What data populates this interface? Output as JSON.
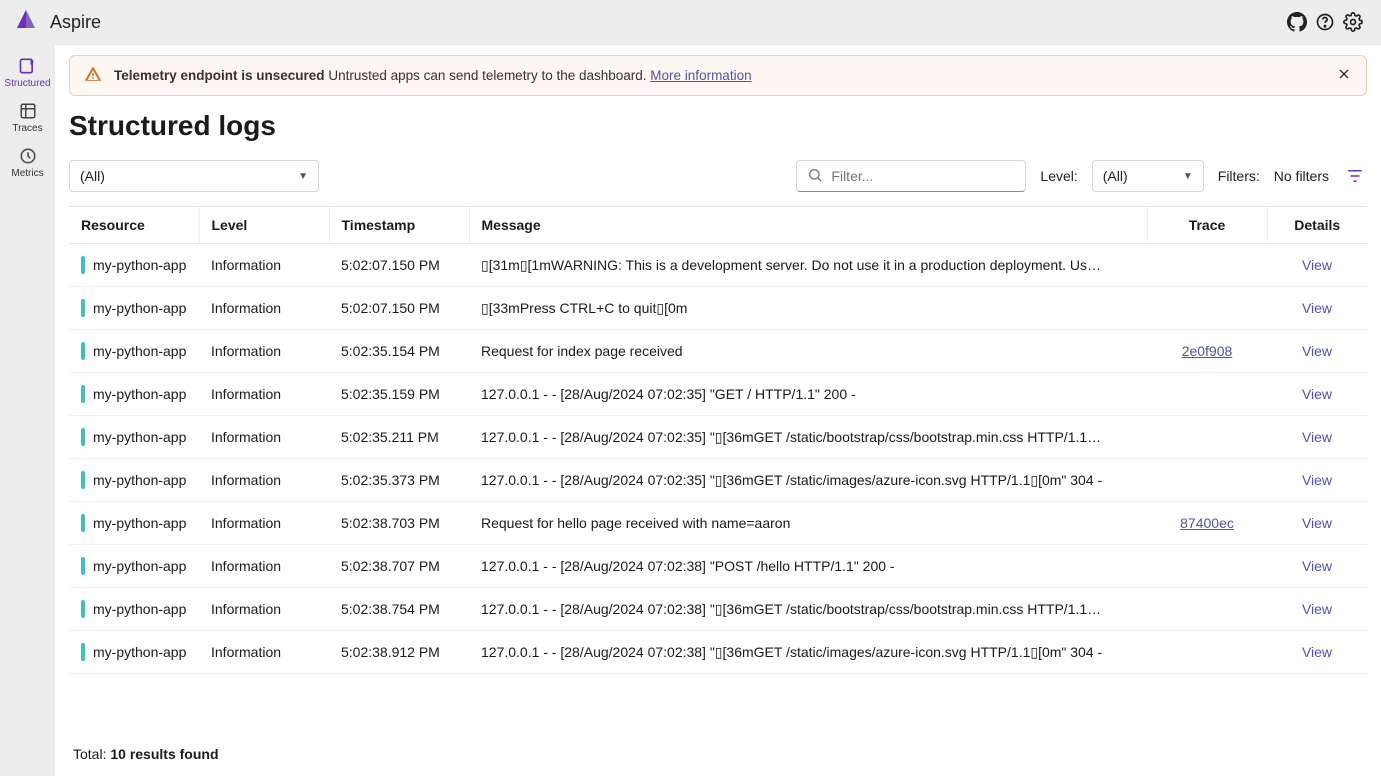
{
  "header": {
    "brand": "Aspire"
  },
  "sidebar": {
    "items": [
      {
        "label": "Structured",
        "icon": "structured-icon",
        "active": true
      },
      {
        "label": "Traces",
        "icon": "traces-icon",
        "active": false
      },
      {
        "label": "Metrics",
        "icon": "metrics-icon",
        "active": false
      }
    ]
  },
  "alert": {
    "title": "Telemetry endpoint is unsecured",
    "body": "Untrusted apps can send telemetry to the dashboard.",
    "link_label": "More information"
  },
  "page": {
    "title": "Structured logs"
  },
  "controls": {
    "resource_selected": "(All)",
    "search_placeholder": "Filter...",
    "level_label": "Level:",
    "level_selected": "(All)",
    "filters_label": "Filters:",
    "filters_value": "No filters"
  },
  "columns": {
    "resource": "Resource",
    "level": "Level",
    "timestamp": "Timestamp",
    "message": "Message",
    "trace": "Trace",
    "details": "Details"
  },
  "rows": [
    {
      "resource": "my-python-app",
      "level": "Information",
      "timestamp": "5:02:07.150 PM",
      "message": "▯[31m▯[1mWARNING: This is a development server. Do not use it in a production deployment. Us…",
      "trace": "",
      "details": "View"
    },
    {
      "resource": "my-python-app",
      "level": "Information",
      "timestamp": "5:02:07.150 PM",
      "message": "▯[33mPress CTRL+C to quit▯[0m",
      "trace": "",
      "details": "View"
    },
    {
      "resource": "my-python-app",
      "level": "Information",
      "timestamp": "5:02:35.154 PM",
      "message": "Request for index page received",
      "trace": "2e0f908",
      "details": "View"
    },
    {
      "resource": "my-python-app",
      "level": "Information",
      "timestamp": "5:02:35.159 PM",
      "message": "127.0.0.1 - - [28/Aug/2024 07:02:35] \"GET / HTTP/1.1\" 200 -",
      "trace": "",
      "details": "View"
    },
    {
      "resource": "my-python-app",
      "level": "Information",
      "timestamp": "5:02:35.211 PM",
      "message": "127.0.0.1 - - [28/Aug/2024 07:02:35] \"▯[36mGET /static/bootstrap/css/bootstrap.min.css HTTP/1.1…",
      "trace": "",
      "details": "View"
    },
    {
      "resource": "my-python-app",
      "level": "Information",
      "timestamp": "5:02:35.373 PM",
      "message": "127.0.0.1 - - [28/Aug/2024 07:02:35] \"▯[36mGET /static/images/azure-icon.svg HTTP/1.1▯[0m\" 304 -",
      "trace": "",
      "details": "View"
    },
    {
      "resource": "my-python-app",
      "level": "Information",
      "timestamp": "5:02:38.703 PM",
      "message": "Request for hello page received with name=aaron",
      "trace": "87400ec",
      "details": "View"
    },
    {
      "resource": "my-python-app",
      "level": "Information",
      "timestamp": "5:02:38.707 PM",
      "message": "127.0.0.1 - - [28/Aug/2024 07:02:38] \"POST /hello HTTP/1.1\" 200 -",
      "trace": "",
      "details": "View"
    },
    {
      "resource": "my-python-app",
      "level": "Information",
      "timestamp": "5:02:38.754 PM",
      "message": "127.0.0.1 - - [28/Aug/2024 07:02:38] \"▯[36mGET /static/bootstrap/css/bootstrap.min.css HTTP/1.1…",
      "trace": "",
      "details": "View"
    },
    {
      "resource": "my-python-app",
      "level": "Information",
      "timestamp": "5:02:38.912 PM",
      "message": "127.0.0.1 - - [28/Aug/2024 07:02:38] \"▯[36mGET /static/images/azure-icon.svg HTTP/1.1▯[0m\" 304 -",
      "trace": "",
      "details": "View"
    }
  ],
  "footer": {
    "total_prefix": "Total: ",
    "total_value": "10 results found"
  },
  "colors": {
    "accent": "#6b2fba",
    "link": "#4f52b2",
    "resource_bar": "#3cc2c2",
    "alert_border": "#f1cdb3",
    "alert_bg": "#fff8f2"
  }
}
